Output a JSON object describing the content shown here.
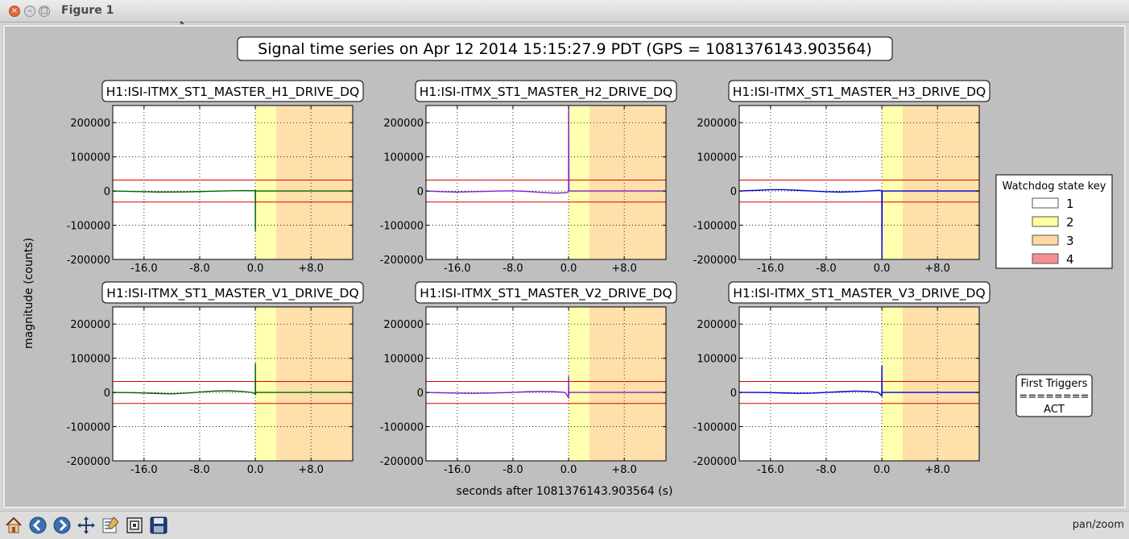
{
  "window": {
    "title": "Figure 1"
  },
  "figure": {
    "suptitle": "Signal time series on Apr 12 2014 15:15:27.9 PDT (GPS = 1081376143.903564)",
    "ylabel": "magnitude (counts)",
    "xlabel": "seconds after 1081376143.903564 (s)"
  },
  "legend": {
    "title": "Watchdog state key",
    "entries": [
      {
        "label": "1",
        "color": "#ffffff"
      },
      {
        "label": "2",
        "color": "#ffff9e"
      },
      {
        "label": "3",
        "color": "#ffd79f"
      },
      {
        "label": "4",
        "color": "#f58e8e"
      }
    ]
  },
  "first_triggers": {
    "line1": "First Triggers",
    "line2": "========",
    "line3": "ACT"
  },
  "colors": {
    "state2": "#ffffb0",
    "state3": "#ffe0aa",
    "threshold": "#e00000",
    "green_trace": "#006400",
    "purple_trace": "#7b20c8",
    "blue_trace": "#0000d0",
    "figure_bg": "#bfbfbf",
    "axes_bg": "#ffffff"
  },
  "chart_data": [
    {
      "type": "line",
      "title": "H1:ISI-ITMX_ST1_MASTER_H1_DRIVE_DQ",
      "xlim": [
        -20.5,
        14
      ],
      "ylim": [
        -200000,
        250000
      ],
      "xticks": [
        "-16.0",
        "-8.0",
        "0.0",
        "+8.0"
      ],
      "xtick_values": [
        -16,
        -8,
        0,
        8
      ],
      "yticks": [
        "200000",
        "100000",
        "0",
        "-100000",
        "-200000"
      ],
      "ytick_values": [
        200000,
        100000,
        0,
        -100000,
        -200000
      ],
      "grid": true,
      "state_spans": [
        {
          "state": 2,
          "from": 0,
          "to": 3
        },
        {
          "state": 3,
          "from": 3,
          "to": 14
        }
      ],
      "thresholds": [
        32000,
        -32000
      ],
      "color": "green_trace",
      "x": [
        -20.5,
        -18,
        -16,
        -14,
        -12,
        -10,
        -8,
        -6,
        -4,
        -2,
        0,
        0.01,
        0.02,
        0.05,
        2,
        6,
        10,
        14
      ],
      "y": [
        0,
        -1000,
        -2000,
        -3000,
        -3000,
        -2500,
        -1500,
        -500,
        500,
        1200,
        1000,
        -117000,
        -1000,
        0,
        0,
        0,
        0,
        0
      ]
    },
    {
      "type": "line",
      "title": "H1:ISI-ITMX_ST1_MASTER_H2_DRIVE_DQ",
      "xlim": [
        -20.5,
        14
      ],
      "ylim": [
        -200000,
        250000
      ],
      "xticks": [
        "-16.0",
        "-8.0",
        "0.0",
        "+8.0"
      ],
      "xtick_values": [
        -16,
        -8,
        0,
        8
      ],
      "yticks": [
        "200000",
        "100000",
        "0",
        "-100000",
        "-200000"
      ],
      "ytick_values": [
        200000,
        100000,
        0,
        -100000,
        -200000
      ],
      "grid": true,
      "state_spans": [
        {
          "state": 2,
          "from": 0,
          "to": 3
        },
        {
          "state": 3,
          "from": 3,
          "to": 14
        }
      ],
      "thresholds": [
        32000,
        -32000
      ],
      "color": "purple_trace",
      "x": [
        -20.5,
        -18,
        -16,
        -14,
        -12,
        -10,
        -8,
        -6,
        -4,
        -2,
        -0.3,
        0,
        0.01,
        0.05,
        2,
        6,
        10,
        14
      ],
      "y": [
        0,
        -2000,
        -3000,
        -2000,
        -1000,
        0,
        500,
        -1000,
        -4000,
        -6000,
        -5000,
        0,
        245000,
        0,
        0,
        0,
        0,
        0
      ]
    },
    {
      "type": "line",
      "title": "H1:ISI-ITMX_ST1_MASTER_H3_DRIVE_DQ",
      "xlim": [
        -20.5,
        14
      ],
      "ylim": [
        -200000,
        250000
      ],
      "xticks": [
        "-16.0",
        "-8.0",
        "0.0",
        "+8.0"
      ],
      "xtick_values": [
        -16,
        -8,
        0,
        8
      ],
      "yticks": [
        "200000",
        "100000",
        "0",
        "-100000",
        "-200000"
      ],
      "ytick_values": [
        200000,
        100000,
        0,
        -100000,
        -200000
      ],
      "grid": true,
      "state_spans": [
        {
          "state": 2,
          "from": 0,
          "to": 3
        },
        {
          "state": 3,
          "from": 3,
          "to": 14
        }
      ],
      "thresholds": [
        32000,
        -32000
      ],
      "color": "blue_trace",
      "x": [
        -20.5,
        -18,
        -16,
        -14,
        -12,
        -10,
        -8,
        -6,
        -4,
        -2,
        -0.3,
        0,
        0.01,
        0.05,
        2,
        6,
        10,
        14
      ],
      "y": [
        0,
        2000,
        4000,
        4000,
        2000,
        0,
        -2000,
        -3000,
        -2000,
        0,
        2000,
        -1000,
        -198000,
        0,
        0,
        0,
        0,
        0
      ]
    },
    {
      "type": "line",
      "title": "H1:ISI-ITMX_ST1_MASTER_V1_DRIVE_DQ",
      "xlim": [
        -20.5,
        14
      ],
      "ylim": [
        -200000,
        250000
      ],
      "xticks": [
        "-16.0",
        "-8.0",
        "0.0",
        "+8.0"
      ],
      "xtick_values": [
        -16,
        -8,
        0,
        8
      ],
      "yticks": [
        "200000",
        "100000",
        "0",
        "-100000",
        "-200000"
      ],
      "ytick_values": [
        200000,
        100000,
        0,
        -100000,
        -200000
      ],
      "grid": true,
      "state_spans": [
        {
          "state": 2,
          "from": 0,
          "to": 3
        },
        {
          "state": 3,
          "from": 3,
          "to": 14
        }
      ],
      "thresholds": [
        32000,
        -32000
      ],
      "color": "green_trace",
      "x": [
        -20.5,
        -18,
        -16,
        -14,
        -12,
        -10,
        -8,
        -6,
        -4,
        -2,
        -0.5,
        0,
        0.01,
        0.03,
        0.06,
        2,
        6,
        10,
        14
      ],
      "y": [
        0,
        -500,
        -1500,
        -3000,
        -4000,
        -2000,
        1000,
        4000,
        5000,
        3000,
        0,
        -4000,
        85000,
        -8000,
        0,
        0,
        0,
        0,
        0
      ]
    },
    {
      "type": "line",
      "title": "H1:ISI-ITMX_ST1_MASTER_V2_DRIVE_DQ",
      "xlim": [
        -20.5,
        14
      ],
      "ylim": [
        -200000,
        250000
      ],
      "xticks": [
        "-16.0",
        "-8.0",
        "0.0",
        "+8.0"
      ],
      "xtick_values": [
        -16,
        -8,
        0,
        8
      ],
      "yticks": [
        "200000",
        "100000",
        "0",
        "-100000",
        "-200000"
      ],
      "ytick_values": [
        200000,
        100000,
        0,
        -100000,
        -200000
      ],
      "grid": true,
      "state_spans": [
        {
          "state": 2,
          "from": 0,
          "to": 3
        },
        {
          "state": 3,
          "from": 3,
          "to": 14
        }
      ],
      "thresholds": [
        32000,
        -32000
      ],
      "color": "purple_trace",
      "x": [
        -20.5,
        -18,
        -16,
        -14,
        -12,
        -10,
        -8,
        -6,
        -4,
        -2,
        -0.5,
        0,
        0.01,
        0.03,
        0.06,
        2,
        6,
        10,
        14
      ],
      "y": [
        0,
        -1000,
        -2000,
        -2500,
        -2000,
        -1000,
        0,
        2000,
        3000,
        2000,
        0,
        -15000,
        48000,
        -8000,
        0,
        0,
        0,
        0,
        0
      ]
    },
    {
      "type": "line",
      "title": "H1:ISI-ITMX_ST1_MASTER_V3_DRIVE_DQ",
      "xlim": [
        -20.5,
        14
      ],
      "ylim": [
        -200000,
        250000
      ],
      "xticks": [
        "-16.0",
        "-8.0",
        "0.0",
        "+8.0"
      ],
      "xtick_values": [
        -16,
        -8,
        0,
        8
      ],
      "yticks": [
        "200000",
        "100000",
        "0",
        "-100000",
        "-200000"
      ],
      "ytick_values": [
        200000,
        100000,
        0,
        -100000,
        -200000
      ],
      "grid": true,
      "state_spans": [
        {
          "state": 2,
          "from": 0,
          "to": 3
        },
        {
          "state": 3,
          "from": 3,
          "to": 14
        }
      ],
      "thresholds": [
        32000,
        -32000
      ],
      "color": "blue_trace",
      "x": [
        -20.5,
        -18,
        -16,
        -14,
        -12,
        -10,
        -8,
        -6,
        -4,
        -2,
        -0.5,
        0,
        0.01,
        0.03,
        0.06,
        2,
        6,
        10,
        14
      ],
      "y": [
        0,
        0,
        -500,
        -1500,
        -2500,
        -2000,
        0,
        2000,
        4000,
        3000,
        0,
        -10000,
        78000,
        -5000,
        0,
        0,
        0,
        0,
        0
      ]
    }
  ],
  "toolbar": {
    "buttons": [
      {
        "icon": "home-icon"
      },
      {
        "icon": "back-icon"
      },
      {
        "icon": "forward-icon"
      },
      {
        "icon": "pan-icon"
      },
      {
        "icon": "configure-subplots-icon"
      },
      {
        "icon": "zoom-to-rect-icon"
      },
      {
        "icon": "save-icon"
      }
    ],
    "status": "pan/zoom"
  }
}
